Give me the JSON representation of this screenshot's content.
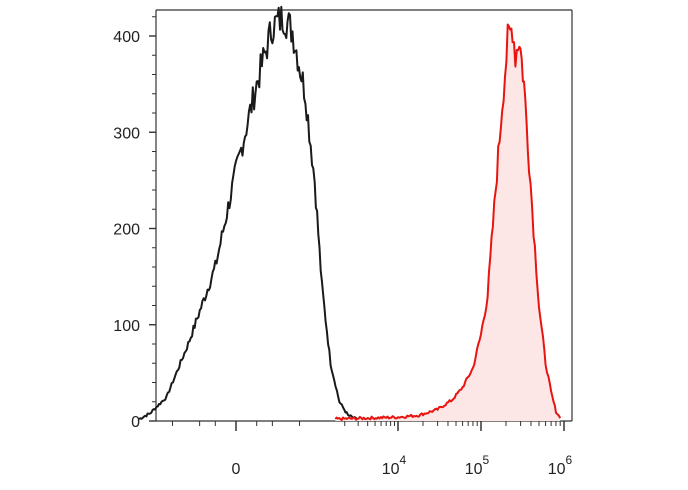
{
  "chart_data": {
    "type": "area",
    "title": "",
    "xlabel": "",
    "ylabel": "",
    "x_scale": "biexponential",
    "ylim": [
      0,
      420
    ],
    "y_ticks": [
      0,
      100,
      200,
      300,
      400
    ],
    "y_tick_labels": [
      "0",
      "100",
      "200",
      "300",
      "400"
    ],
    "x_ticks": [
      0,
      10000,
      100000,
      1000000
    ],
    "x_tick_labels": [
      {
        "base": "0",
        "exp": ""
      },
      {
        "base": "10",
        "exp": "4"
      },
      {
        "base": "10",
        "exp": "5"
      },
      {
        "base": "10",
        "exp": "6"
      }
    ],
    "grid": false,
    "legend": "none",
    "series": [
      {
        "color": "#1a1a1a",
        "fill": "none",
        "x": [
          -1400,
          -1000,
          -600,
          -300,
          -100,
          0,
          100,
          200,
          300,
          400,
          600,
          800,
          1000,
          1300,
          1700,
          2200,
          2800,
          3500
        ],
        "y": [
          2,
          8,
          25,
          80,
          160,
          260,
          350,
          410,
          420,
          405,
          340,
          250,
          140,
          60,
          20,
          6,
          2,
          1
        ]
      },
      {
        "color": "#e8140f",
        "fill": "#fde6e6",
        "x": [
          1500,
          4000,
          10000,
          18000,
          30000,
          45000,
          60000,
          80000,
          100000,
          120000,
          150000,
          180000,
          210000,
          240000,
          260000,
          290000,
          330000,
          380000,
          430000,
          500000,
          600000,
          700000,
          800000,
          900000
        ],
        "y": [
          2,
          3,
          4,
          6,
          12,
          22,
          35,
          55,
          90,
          130,
          240,
          330,
          395,
          410,
          380,
          398,
          350,
          270,
          200,
          120,
          60,
          30,
          10,
          3
        ]
      }
    ]
  }
}
